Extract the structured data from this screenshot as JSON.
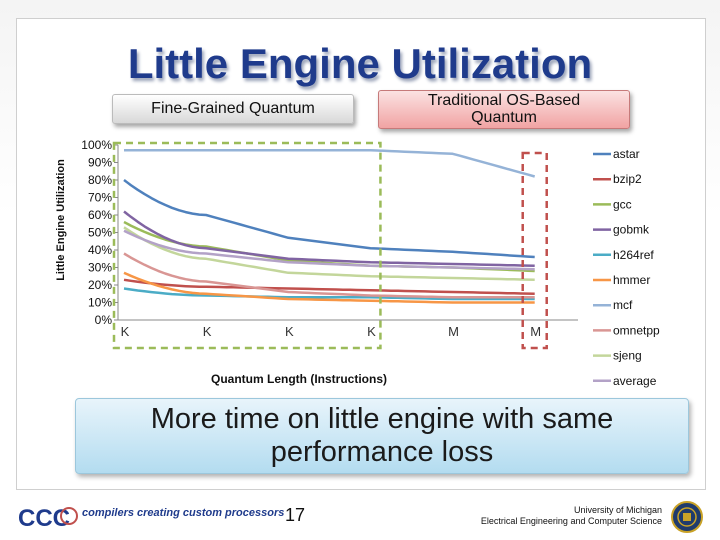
{
  "slide": {
    "title": "Little Engine Utilization",
    "callout_fine": "Fine-Grained Quantum",
    "callout_os_line1": "Traditional OS-Based",
    "callout_os_line2": "Quantum",
    "message_line1": "More time on little engine with same",
    "message_line2": "performance loss",
    "page_number": "17",
    "footer_brand": "compilers creating custom processors",
    "logo_text": "CCC",
    "univ_line1": "University of Michigan",
    "univ_line2": "Electrical Engineering and Computer Science"
  },
  "colors": {
    "title": "#1f3b8c",
    "highlight_green": "#9bbb59",
    "highlight_red": "#c0504d"
  },
  "chart_data": {
    "type": "line",
    "title": "",
    "xlabel": "Quantum Length (Instructions)",
    "ylabel": "Little Engine Utilization",
    "ylim": [
      0,
      100
    ],
    "yticks": [
      "0%",
      "10%",
      "20%",
      "30%",
      "40%",
      "50%",
      "60%",
      "70%",
      "80%",
      "90%",
      "100%"
    ],
    "categories": [
      "K",
      "K",
      "K",
      "K",
      "M",
      "M"
    ],
    "grid": false,
    "legend_position": "right",
    "series": [
      {
        "name": "astar",
        "color": "#4f81bd",
        "values": [
          80,
          60,
          47,
          41,
          39,
          36
        ]
      },
      {
        "name": "bzip2",
        "color": "#c0504d",
        "values": [
          23,
          19,
          18,
          17,
          16,
          15
        ]
      },
      {
        "name": "gcc",
        "color": "#9bbb59",
        "values": [
          56,
          42,
          34,
          31,
          30,
          28
        ]
      },
      {
        "name": "gobmk",
        "color": "#8064a2",
        "values": [
          62,
          41,
          35,
          33,
          32,
          31
        ]
      },
      {
        "name": "h264ref",
        "color": "#4bacc6",
        "values": [
          18,
          14,
          13,
          13,
          12,
          12
        ]
      },
      {
        "name": "hmmer",
        "color": "#f79646",
        "values": [
          27,
          15,
          12,
          11,
          10,
          10
        ]
      },
      {
        "name": "mcf",
        "color": "#95b3d7",
        "values": [
          97,
          97,
          97,
          97,
          95,
          82
        ]
      },
      {
        "name": "omnetpp",
        "color": "#d99694",
        "values": [
          38,
          22,
          16,
          14,
          13,
          13
        ]
      },
      {
        "name": "sjeng",
        "color": "#c3d69b",
        "values": [
          53,
          35,
          27,
          25,
          24,
          23
        ]
      },
      {
        "name": "average",
        "color": "#b3a2c7",
        "values": [
          51,
          38,
          33,
          31,
          30,
          29
        ]
      }
    ]
  }
}
